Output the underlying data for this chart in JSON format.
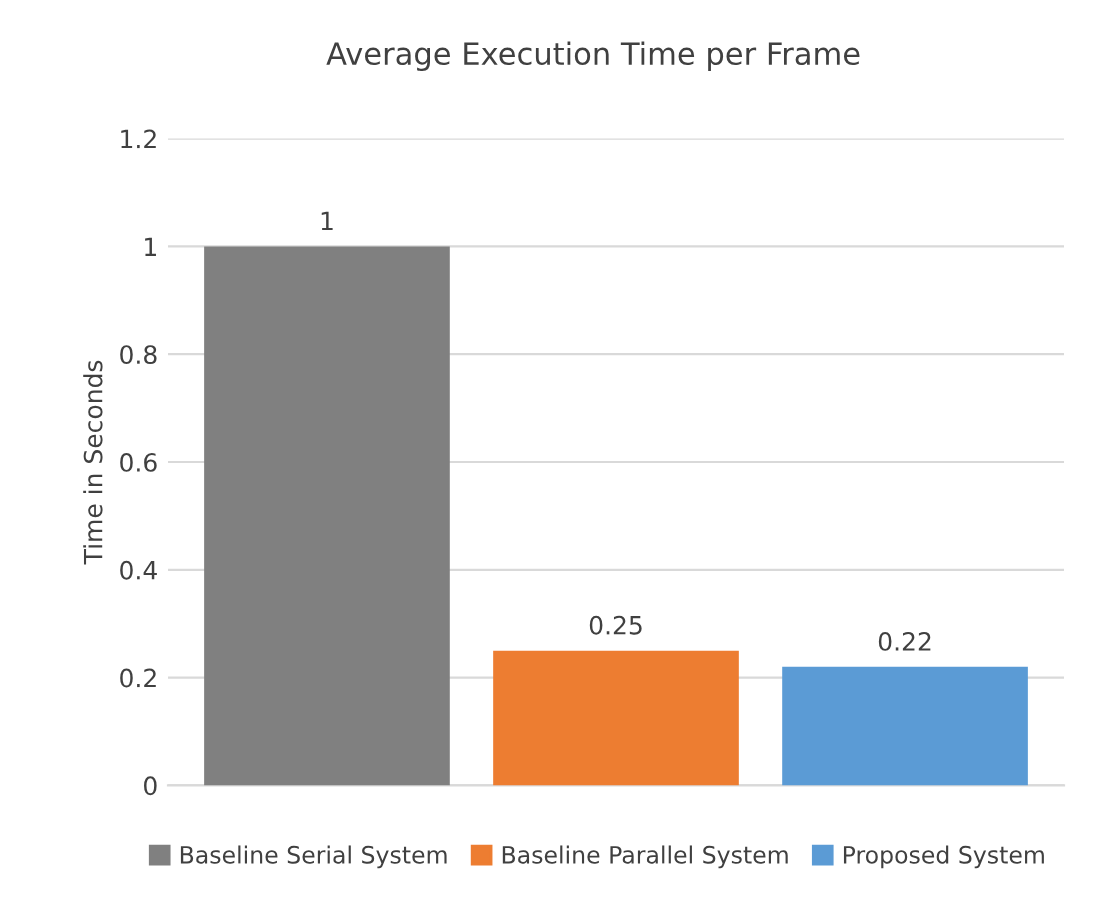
{
  "chart_data": {
    "type": "bar",
    "title": "Average Execution Time per Frame",
    "ylabel": "Time in Seconds",
    "categories": [
      null,
      null,
      null
    ],
    "series": [
      {
        "name": "Baseline Serial System",
        "color": "#808080",
        "values": [
          1,
          null,
          null
        ]
      },
      {
        "name": "Baseline Parallel System",
        "color": "#ed7d31",
        "values": [
          null,
          0.25,
          null
        ]
      },
      {
        "name": "Proposed System",
        "color": "#5b9bd5",
        "values": [
          null,
          null,
          0.22
        ]
      }
    ],
    "ylim": [
      0,
      1.2
    ],
    "yticks": [
      0,
      0.2,
      0.4,
      0.6,
      0.8,
      1,
      1.2
    ],
    "grid": "y",
    "legend": "bottom",
    "data_labels": true
  }
}
